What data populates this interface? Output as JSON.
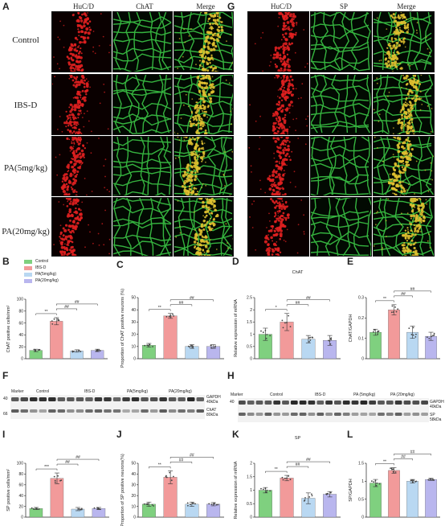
{
  "panels": {
    "A": "A",
    "G": "G",
    "B": "B",
    "C": "C",
    "D": "D",
    "E": "E",
    "F": "F",
    "H": "H",
    "I": "I",
    "J": "J",
    "K": "K",
    "L": "L"
  },
  "micrograph": {
    "left_cols": [
      "HuC/D",
      "ChAT",
      "Merge"
    ],
    "right_cols": [
      "HuC/D",
      "SP",
      "Merge"
    ],
    "rows": [
      "Control",
      "IBS-D",
      "PA(5mg/kg)",
      "PA(20mg/kg)"
    ]
  },
  "legend": {
    "items": [
      {
        "label": "Control",
        "color": "#7fd07f"
      },
      {
        "label": "IBS-D",
        "color": "#f29a9a"
      },
      {
        "label": "PA(5mg/kg)",
        "color": "#b9d8f2"
      },
      {
        "label": "PA(20mg/kg)",
        "color": "#b9b6ee"
      }
    ]
  },
  "blot_F": {
    "header": {
      "marker": "Marker",
      "control": "Control",
      "ibs": "IBS-D",
      "pa5": "PA(5mg/kg)",
      "pa20": "PA(20mg/kg)"
    },
    "mw_top": "40",
    "mw_bottom": "66",
    "right_top": "GAPDH",
    "right_top2": "40kDa",
    "right_bottom": "ChAT",
    "right_bottom2": "80kDa"
  },
  "blot_H": {
    "header": {
      "marker": "Marker",
      "control": "Control",
      "ibs": "IBS-D",
      "pa5": "PA (5mg/kg)",
      "pa20": "PA (20mg/kg)"
    },
    "mw_top": "40",
    "right_top": "GAPDH",
    "right_top2": "40kDa",
    "right_bottom": "SP",
    "right_bottom2": "58kDa"
  },
  "chart_data": [
    {
      "panel": "B",
      "type": "bar",
      "categories": [
        "Control",
        "IBS-D",
        "PA(5mg/kg)",
        "PA(20mg/kg)"
      ],
      "values": [
        14,
        63,
        13,
        14
      ],
      "errors": [
        2,
        6,
        2,
        2
      ],
      "ylabel": "ChAT positive cells/mm²",
      "ylim": [
        0,
        100
      ],
      "yticks": [
        0,
        20,
        40,
        60,
        80,
        100
      ],
      "significance": [
        {
          "from": 0,
          "to": 1,
          "label": "**"
        },
        {
          "from": 1,
          "to": 2,
          "label": "##"
        },
        {
          "from": 1,
          "to": 3,
          "label": "##"
        }
      ]
    },
    {
      "panel": "C",
      "type": "bar",
      "categories": [
        "Control",
        "IBS-D",
        "PA(5mg/kg)",
        "PA(20mg/kg)"
      ],
      "values": [
        11,
        35,
        10,
        10
      ],
      "errors": [
        1.5,
        2,
        1.5,
        1.5
      ],
      "ylabel": "Proportion of ChAT positive neurons (%)",
      "ylim": [
        0,
        50
      ],
      "yticks": [
        0,
        10,
        20,
        30,
        40,
        50
      ],
      "significance": [
        {
          "from": 0,
          "to": 1,
          "label": "**"
        },
        {
          "from": 1,
          "to": 2,
          "label": "##"
        },
        {
          "from": 1,
          "to": 3,
          "label": "##"
        }
      ]
    },
    {
      "panel": "D",
      "type": "bar",
      "title": "ChAT",
      "categories": [
        "Control",
        "IBS-D",
        "PA(5mg/kg)",
        "PA(20mg/kg)"
      ],
      "values": [
        1.0,
        1.5,
        0.8,
        0.75
      ],
      "errors": [
        0.25,
        0.35,
        0.15,
        0.2
      ],
      "ylabel": "Relative expression of mRNA",
      "ylim": [
        0,
        2.5
      ],
      "yticks": [
        0,
        0.5,
        1.0,
        1.5,
        2.0,
        2.5
      ],
      "significance": [
        {
          "from": 0,
          "to": 1,
          "label": "*"
        },
        {
          "from": 1,
          "to": 2,
          "label": "##"
        },
        {
          "from": 1,
          "to": 3,
          "label": "##"
        }
      ]
    },
    {
      "panel": "E",
      "type": "bar",
      "categories": [
        "Control",
        "IBS-D",
        "PA(5mg/kg)",
        "PA(20mg/kg)"
      ],
      "values": [
        0.13,
        0.24,
        0.13,
        0.11
      ],
      "errors": [
        0.015,
        0.025,
        0.03,
        0.02
      ],
      "ylabel": "ChAT/GAPDH",
      "ylim": [
        0,
        0.3
      ],
      "yticks": [
        0,
        0.1,
        0.2,
        0.3
      ],
      "significance": [
        {
          "from": 0,
          "to": 1,
          "label": "**"
        },
        {
          "from": 1,
          "to": 2,
          "label": "##"
        },
        {
          "from": 1,
          "to": 3,
          "label": "##"
        }
      ]
    },
    {
      "panel": "I",
      "type": "bar",
      "categories": [
        "Control",
        "IBS-D",
        "PA(5mg/kg)",
        "PA(20mg/kg)"
      ],
      "values": [
        16,
        72,
        15,
        16
      ],
      "errors": [
        2,
        10,
        3,
        2
      ],
      "ylabel": "SP positive cells/mm²",
      "ylim": [
        0,
        100
      ],
      "yticks": [
        0,
        20,
        40,
        60,
        80,
        100
      ],
      "significance": [
        {
          "from": 0,
          "to": 1,
          "label": "***"
        },
        {
          "from": 1,
          "to": 2,
          "label": "##"
        },
        {
          "from": 1,
          "to": 3,
          "label": "##"
        }
      ]
    },
    {
      "panel": "J",
      "type": "bar",
      "categories": [
        "Control",
        "IBS-D",
        "PA(5mg/kg)",
        "PA(20mg/kg)"
      ],
      "values": [
        12,
        37,
        12,
        12
      ],
      "errors": [
        2,
        6,
        2,
        1.5
      ],
      "ylabel": "Proportion of SP positive neurons(%)",
      "ylim": [
        0,
        50
      ],
      "yticks": [
        0,
        10,
        20,
        30,
        40,
        50
      ],
      "significance": [
        {
          "from": 0,
          "to": 1,
          "label": "**"
        },
        {
          "from": 1,
          "to": 2,
          "label": "##"
        },
        {
          "from": 1,
          "to": 3,
          "label": "##"
        }
      ]
    },
    {
      "panel": "K",
      "type": "bar",
      "title": "SP",
      "categories": [
        "Control",
        "IBS-D",
        "PA(5mg/kg)",
        "PA(20mg/kg)"
      ],
      "values": [
        1.0,
        1.45,
        0.7,
        0.85
      ],
      "errors": [
        0.1,
        0.1,
        0.2,
        0.1
      ],
      "ylabel": "Relative expression of mRNA",
      "ylim": [
        0,
        2.0
      ],
      "yticks": [
        0,
        0.5,
        1.0,
        1.5,
        2.0
      ],
      "significance": [
        {
          "from": 0,
          "to": 1,
          "label": "**"
        },
        {
          "from": 1,
          "to": 2,
          "label": "##"
        },
        {
          "from": 1,
          "to": 3,
          "label": "##"
        }
      ]
    },
    {
      "panel": "L",
      "type": "bar",
      "categories": [
        "Control",
        "IBS-D",
        "PA(5mg/kg)",
        "PA(20mg/kg)"
      ],
      "values": [
        0.95,
        1.3,
        1.0,
        1.05
      ],
      "errors": [
        0.1,
        0.08,
        0.05,
        0.03
      ],
      "ylabel": "SP/GAPDH",
      "ylim": [
        0,
        1.5
      ],
      "yticks": [
        0,
        0.5,
        1.0,
        1.5
      ],
      "significance": [
        {
          "from": 0,
          "to": 1,
          "label": "**"
        },
        {
          "from": 1,
          "to": 2,
          "label": "##"
        },
        {
          "from": 1,
          "to": 3,
          "label": "##"
        }
      ]
    }
  ]
}
